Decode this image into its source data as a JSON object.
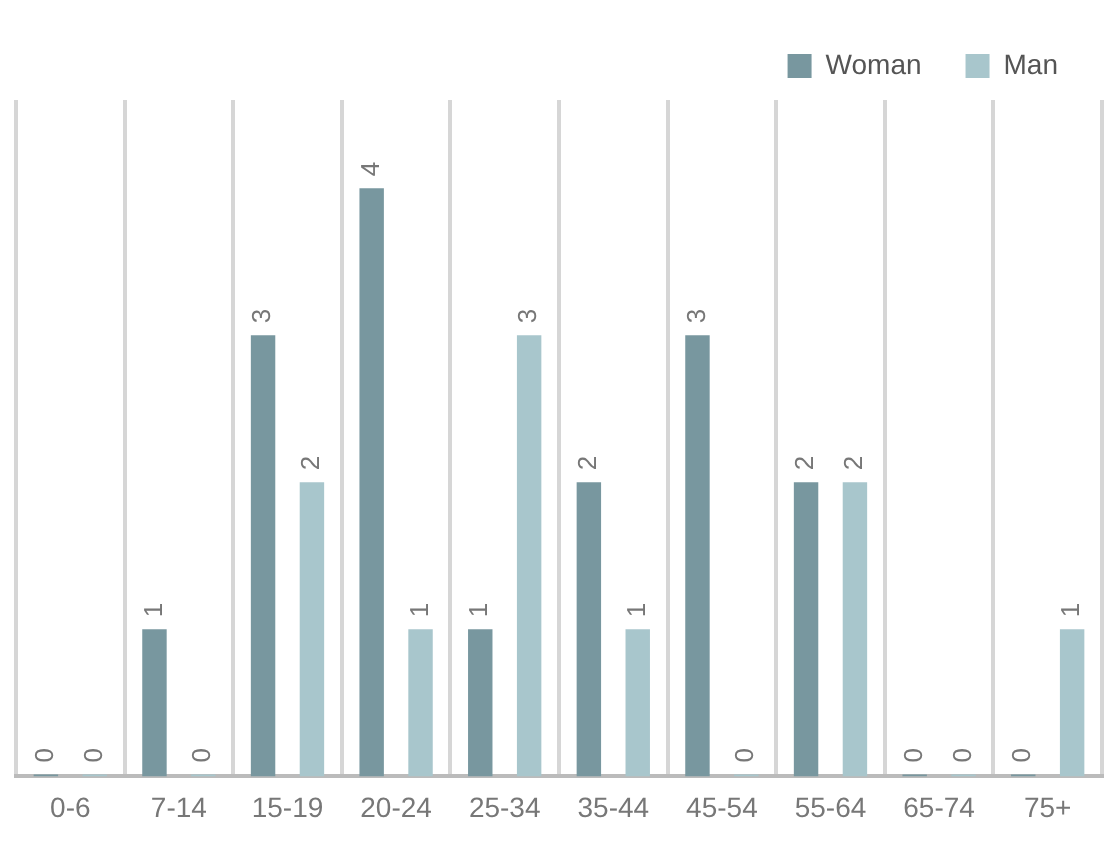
{
  "chart_data": {
    "type": "bar",
    "categories": [
      "0-6",
      "7-14",
      "15-19",
      "20-24",
      "25-34",
      "35-44",
      "45-54",
      "55-64",
      "65-74",
      "75+"
    ],
    "series": [
      {
        "name": "Woman",
        "color": "#78979f",
        "values": [
          0,
          1,
          3,
          4,
          1,
          2,
          3,
          2,
          0,
          0
        ]
      },
      {
        "name": "Man",
        "color": "#a8c6cc",
        "values": [
          0,
          0,
          2,
          1,
          3,
          1,
          0,
          2,
          0,
          1
        ]
      }
    ],
    "ylim": [
      0,
      4.6
    ],
    "tick_labels": "x",
    "grid": "x",
    "legend": "top right",
    "data_labels": true
  }
}
